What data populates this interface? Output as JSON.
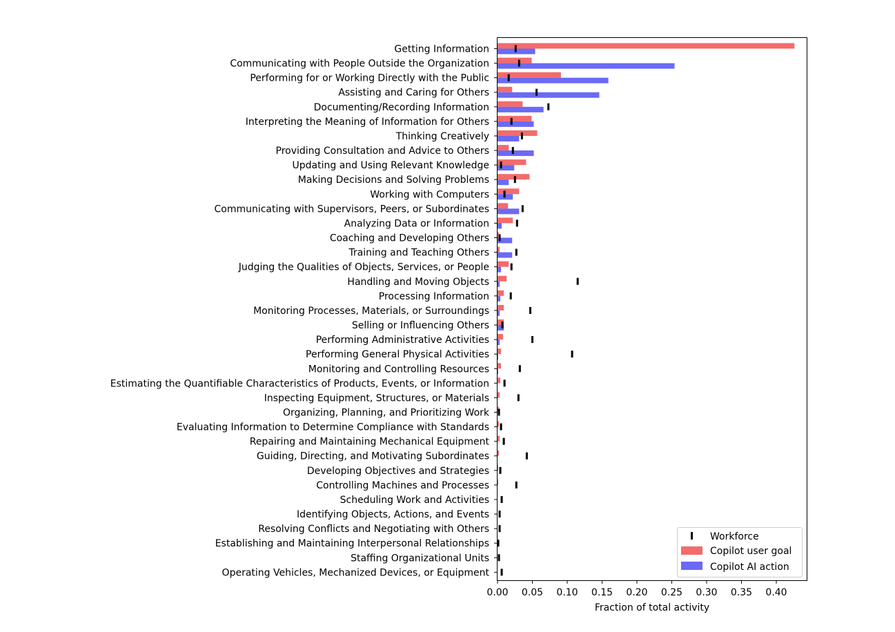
{
  "chart_data": {
    "type": "bar",
    "orientation": "horizontal",
    "title": "",
    "xlabel": "Fraction of total activity",
    "ylabel": "",
    "xlim": [
      0,
      0.44
    ],
    "x_ticks": [
      0.0,
      0.05,
      0.1,
      0.15,
      0.2,
      0.25,
      0.3,
      0.35,
      0.4
    ],
    "x_tick_labels": [
      "0.00",
      "0.05",
      "0.10",
      "0.15",
      "0.20",
      "0.25",
      "0.30",
      "0.35",
      "0.40"
    ],
    "grid": false,
    "legend_position": "bottom-right",
    "categories": [
      "Getting Information",
      "Communicating with People Outside the Organization",
      "Performing for or Working Directly with the Public",
      "Assisting and Caring for Others",
      "Documenting/Recording Information",
      "Interpreting the Meaning of Information for Others",
      "Thinking Creatively",
      "Providing Consultation and Advice to Others",
      "Updating and Using Relevant Knowledge",
      "Making Decisions and Solving Problems",
      "Working with Computers",
      "Communicating with Supervisors, Peers, or Subordinates",
      "Analyzing Data or Information",
      "Coaching and Developing Others",
      "Training and Teaching Others",
      "Judging the Qualities of Objects, Services, or People",
      "Handling and Moving Objects",
      "Processing Information",
      "Monitoring Processes, Materials, or Surroundings",
      "Selling or Influencing Others",
      "Performing Administrative Activities",
      "Performing General Physical Activities",
      "Monitoring and Controlling Resources",
      "Estimating the Quantifiable Characteristics of Products, Events, or Information",
      "Inspecting Equipment, Structures, or Materials",
      "Organizing, Planning, and Prioritizing Work",
      "Evaluating Information to Determine Compliance with Standards",
      "Repairing and Maintaining Mechanical Equipment",
      "Guiding, Directing, and Motivating Subordinates",
      "Developing Objectives and Strategies",
      "Controlling Machines and Processes",
      "Scheduling Work and Activities",
      "Identifying Objects, Actions, and Events",
      "Resolving Conflicts and Negotiating with Others",
      "Establishing and Maintaining Interpersonal Relationships",
      "Staffing Organizational Units",
      "Operating Vehicles, Mechanized Devices, or Equipment"
    ],
    "series": [
      {
        "name": "Copilot user goal",
        "color": "#f46b6b",
        "values": [
          0.426,
          0.049,
          0.091,
          0.021,
          0.036,
          0.049,
          0.057,
          0.016,
          0.041,
          0.046,
          0.031,
          0.015,
          0.022,
          0.002,
          0.003,
          0.016,
          0.013,
          0.009,
          0.009,
          0.009,
          0.008,
          0.005,
          0.005,
          0.004,
          0.003,
          0.002,
          0.002,
          0.003,
          0.002,
          0.001,
          0.001,
          0.0,
          0.0,
          0.0,
          0.0,
          0.0,
          0.0
        ]
      },
      {
        "name": "Copilot AI action",
        "color": "#6a6af5",
        "values": [
          0.054,
          0.254,
          0.159,
          0.146,
          0.066,
          0.052,
          0.031,
          0.052,
          0.024,
          0.016,
          0.022,
          0.031,
          0.006,
          0.021,
          0.021,
          0.005,
          0.003,
          0.004,
          0.003,
          0.009,
          0.003,
          0.001,
          0.001,
          0.0,
          0.0,
          0.0,
          0.0,
          0.0,
          0.0,
          0.0,
          0.0,
          0.0,
          0.0,
          0.0,
          0.0,
          0.0,
          0.0
        ]
      },
      {
        "name": "Workforce",
        "color": "#000000",
        "marker": "vertical-tick",
        "values": [
          0.026,
          0.031,
          0.016,
          0.056,
          0.073,
          0.02,
          0.035,
          0.022,
          0.005,
          0.025,
          0.01,
          0.036,
          0.028,
          0.003,
          0.027,
          0.02,
          0.115,
          0.019,
          0.047,
          0.007,
          0.05,
          0.107,
          0.032,
          0.01,
          0.03,
          0.002,
          0.005,
          0.009,
          0.042,
          0.004,
          0.027,
          0.006,
          0.003,
          0.003,
          0.001,
          0.002,
          0.006
        ]
      }
    ],
    "legend": [
      "Workforce",
      "Copilot user goal",
      "Copilot AI action"
    ]
  }
}
